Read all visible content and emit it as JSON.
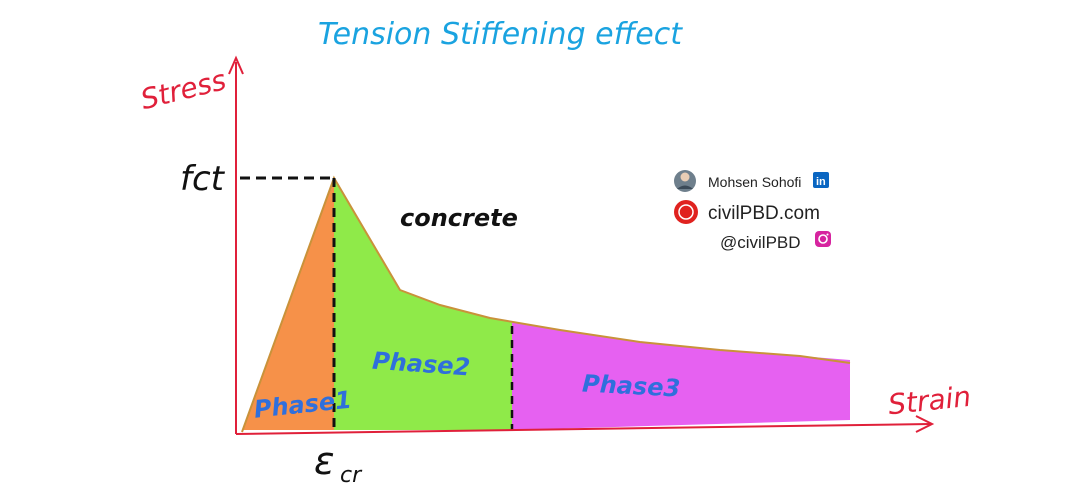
{
  "title": "Tension Stiffening effect",
  "axes": {
    "y_label": "Stress",
    "x_label": "Strain",
    "y_tick": "fct",
    "x_tick_main": "ε",
    "x_tick_sub": "cr"
  },
  "curve_label": "concrete",
  "phases": [
    {
      "label": "Phase1",
      "color": "#f5883a"
    },
    {
      "label": "Phase2",
      "color": "#86e83a"
    },
    {
      "label": "Phase3",
      "color": "#e454f0"
    }
  ],
  "credits": {
    "name": "Mohsen Sohofi",
    "linkedin": "in",
    "site": "civilPBD.com",
    "handle": "@civilPBD"
  },
  "colors": {
    "title": "#1aa3e0",
    "axis": "#e0203a",
    "curve": "#c9923a",
    "phase_text": "#2f6fdc"
  }
}
